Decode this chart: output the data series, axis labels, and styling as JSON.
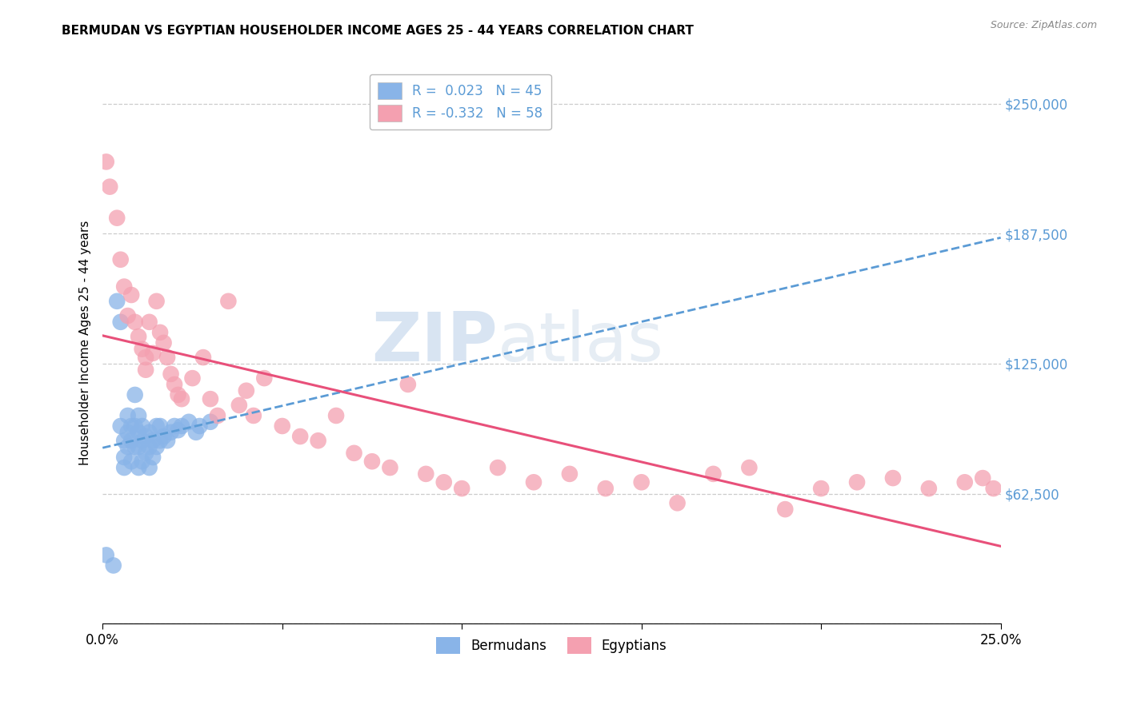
{
  "title": "BERMUDAN VS EGYPTIAN HOUSEHOLDER INCOME AGES 25 - 44 YEARS CORRELATION CHART",
  "source": "Source: ZipAtlas.com",
  "ylabel": "Householder Income Ages 25 - 44 years",
  "xlim": [
    0.0,
    0.25
  ],
  "ylim": [
    0,
    270000
  ],
  "yticks": [
    0,
    62500,
    125000,
    187500,
    250000
  ],
  "ytick_labels": [
    "",
    "$62,500",
    "$125,000",
    "$187,500",
    "$250,000"
  ],
  "xticks": [
    0.0,
    0.05,
    0.1,
    0.15,
    0.2,
    0.25
  ],
  "xtick_labels": [
    "0.0%",
    "",
    "",
    "",
    "",
    "25.0%"
  ],
  "watermark_zip": "ZIP",
  "watermark_atlas": "atlas",
  "bermuda_color": "#89b4e8",
  "egypt_color": "#f4a0b0",
  "bermuda_line_color": "#5b9bd5",
  "egypt_line_color": "#e8507a",
  "R_bermuda": 0.023,
  "N_bermuda": 45,
  "R_egypt": -0.332,
  "N_egypt": 58,
  "bermuda_x": [
    0.001,
    0.003,
    0.004,
    0.005,
    0.005,
    0.006,
    0.006,
    0.006,
    0.007,
    0.007,
    0.007,
    0.008,
    0.008,
    0.008,
    0.009,
    0.009,
    0.009,
    0.01,
    0.01,
    0.01,
    0.01,
    0.011,
    0.011,
    0.011,
    0.012,
    0.012,
    0.013,
    0.013,
    0.013,
    0.014,
    0.014,
    0.015,
    0.015,
    0.016,
    0.016,
    0.017,
    0.018,
    0.019,
    0.02,
    0.021,
    0.022,
    0.024,
    0.026,
    0.027,
    0.03
  ],
  "bermuda_y": [
    33000,
    28000,
    155000,
    145000,
    95000,
    88000,
    80000,
    75000,
    100000,
    92000,
    85000,
    95000,
    88000,
    78000,
    110000,
    95000,
    85000,
    100000,
    92000,
    85000,
    75000,
    95000,
    88000,
    78000,
    90000,
    82000,
    92000,
    85000,
    75000,
    88000,
    80000,
    95000,
    85000,
    95000,
    88000,
    90000,
    88000,
    92000,
    95000,
    93000,
    95000,
    97000,
    92000,
    95000,
    97000
  ],
  "egypt_x": [
    0.001,
    0.002,
    0.004,
    0.005,
    0.006,
    0.007,
    0.008,
    0.009,
    0.01,
    0.011,
    0.012,
    0.012,
    0.013,
    0.014,
    0.015,
    0.016,
    0.017,
    0.018,
    0.019,
    0.02,
    0.021,
    0.022,
    0.025,
    0.028,
    0.03,
    0.032,
    0.035,
    0.038,
    0.04,
    0.042,
    0.045,
    0.05,
    0.055,
    0.06,
    0.065,
    0.07,
    0.075,
    0.08,
    0.085,
    0.09,
    0.095,
    0.1,
    0.11,
    0.12,
    0.13,
    0.14,
    0.15,
    0.16,
    0.17,
    0.18,
    0.19,
    0.2,
    0.21,
    0.22,
    0.23,
    0.24,
    0.245,
    0.248
  ],
  "egypt_y": [
    222000,
    210000,
    195000,
    175000,
    162000,
    148000,
    158000,
    145000,
    138000,
    132000,
    128000,
    122000,
    145000,
    130000,
    155000,
    140000,
    135000,
    128000,
    120000,
    115000,
    110000,
    108000,
    118000,
    128000,
    108000,
    100000,
    155000,
    105000,
    112000,
    100000,
    118000,
    95000,
    90000,
    88000,
    100000,
    82000,
    78000,
    75000,
    115000,
    72000,
    68000,
    65000,
    75000,
    68000,
    72000,
    65000,
    68000,
    58000,
    72000,
    75000,
    55000,
    65000,
    68000,
    70000,
    65000,
    68000,
    70000,
    65000
  ]
}
